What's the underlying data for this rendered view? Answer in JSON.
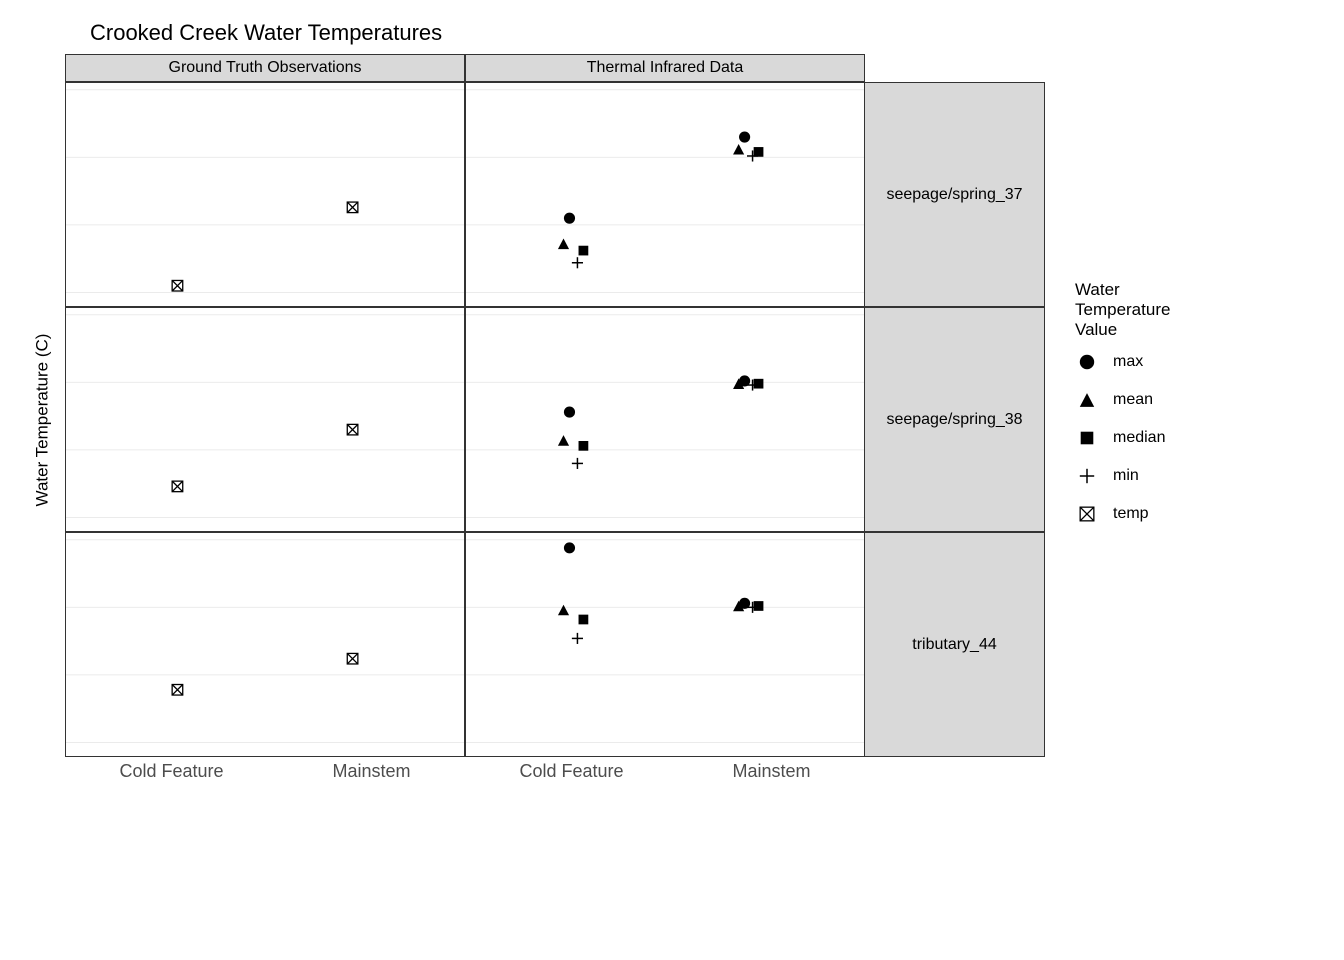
{
  "title": "Crooked Creek Water Temperatures",
  "y_axis_label": "Water Temperature (C)",
  "col_headers": [
    "Ground Truth Observations",
    "Thermal Infrared Data"
  ],
  "row_headers": [
    "seepage/spring_37",
    "seepage/spring_38",
    "tributary_44"
  ],
  "x_categories": [
    "Cold Feature",
    "Mainstem"
  ],
  "legend": {
    "title": "Water\nTemperature\nValue",
    "items": [
      {
        "shape": "circle",
        "label": "max"
      },
      {
        "shape": "triangle",
        "label": "mean"
      },
      {
        "shape": "square",
        "label": "median"
      },
      {
        "shape": "plus",
        "label": "min"
      },
      {
        "shape": "boxx",
        "label": "temp"
      }
    ]
  },
  "y_axis": {
    "min": 4,
    "max": 20.5,
    "ticks": [
      5,
      10,
      15,
      20
    ],
    "gridlines": [
      5,
      10,
      15,
      20
    ]
  },
  "x_positions": {
    "Cold Feature": 0.28,
    "Mainstem": 0.72
  },
  "jitter": {
    "max": -0.02,
    "mean": -0.035,
    "median": 0.015,
    "min": 0.0
  },
  "panels": [
    {
      "row": 0,
      "col": 0,
      "points": [
        {
          "x": "Cold Feature",
          "y": 5.5,
          "shape": "boxx"
        },
        {
          "x": "Mainstem",
          "y": 11.3,
          "shape": "boxx"
        }
      ]
    },
    {
      "row": 0,
      "col": 1,
      "points": [
        {
          "x": "Cold Feature",
          "y": 10.5,
          "shape": "circle"
        },
        {
          "x": "Cold Feature",
          "y": 8.6,
          "shape": "triangle"
        },
        {
          "x": "Cold Feature",
          "y": 8.1,
          "shape": "square"
        },
        {
          "x": "Cold Feature",
          "y": 7.2,
          "shape": "plus"
        },
        {
          "x": "Mainstem",
          "y": 16.5,
          "shape": "circle"
        },
        {
          "x": "Mainstem",
          "y": 15.6,
          "shape": "triangle"
        },
        {
          "x": "Mainstem",
          "y": 15.4,
          "shape": "square"
        },
        {
          "x": "Mainstem",
          "y": 15.1,
          "shape": "plus"
        }
      ]
    },
    {
      "row": 1,
      "col": 0,
      "points": [
        {
          "x": "Cold Feature",
          "y": 7.3,
          "shape": "boxx"
        },
        {
          "x": "Mainstem",
          "y": 11.5,
          "shape": "boxx"
        }
      ]
    },
    {
      "row": 1,
      "col": 1,
      "points": [
        {
          "x": "Cold Feature",
          "y": 12.8,
          "shape": "circle"
        },
        {
          "x": "Cold Feature",
          "y": 10.7,
          "shape": "triangle"
        },
        {
          "x": "Cold Feature",
          "y": 10.3,
          "shape": "square"
        },
        {
          "x": "Cold Feature",
          "y": 9.0,
          "shape": "plus"
        },
        {
          "x": "Mainstem",
          "y": 15.1,
          "shape": "circle"
        },
        {
          "x": "Mainstem",
          "y": 14.9,
          "shape": "triangle"
        },
        {
          "x": "Mainstem",
          "y": 14.9,
          "shape": "square"
        },
        {
          "x": "Mainstem",
          "y": 14.8,
          "shape": "plus"
        }
      ]
    },
    {
      "row": 2,
      "col": 0,
      "points": [
        {
          "x": "Cold Feature",
          "y": 8.9,
          "shape": "boxx"
        },
        {
          "x": "Mainstem",
          "y": 11.2,
          "shape": "boxx"
        }
      ]
    },
    {
      "row": 2,
      "col": 1,
      "points": [
        {
          "x": "Cold Feature",
          "y": 19.4,
          "shape": "circle"
        },
        {
          "x": "Cold Feature",
          "y": 14.8,
          "shape": "triangle"
        },
        {
          "x": "Cold Feature",
          "y": 14.1,
          "shape": "square"
        },
        {
          "x": "Cold Feature",
          "y": 12.7,
          "shape": "plus"
        },
        {
          "x": "Mainstem",
          "y": 15.3,
          "shape": "circle"
        },
        {
          "x": "Mainstem",
          "y": 15.1,
          "shape": "triangle"
        },
        {
          "x": "Mainstem",
          "y": 15.1,
          "shape": "square"
        },
        {
          "x": "Mainstem",
          "y": 15.0,
          "shape": "plus"
        }
      ]
    }
  ],
  "colors": {
    "background": "#ffffff",
    "panel_border": "#333333",
    "strip_bg": "#d9d9d9",
    "grid": "#ebebeb",
    "text": "#4d4d4d",
    "marker": "#000000"
  },
  "marker_size": 7
}
